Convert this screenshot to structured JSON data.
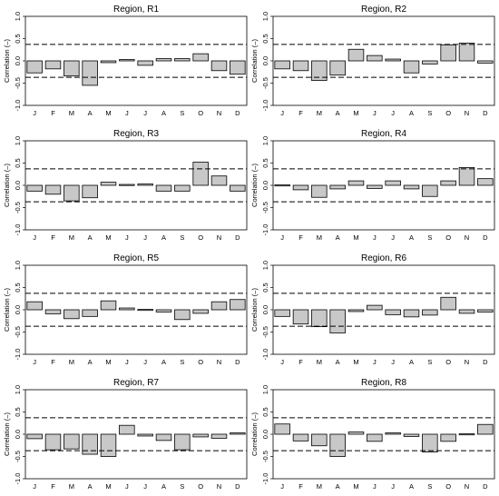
{
  "chart_data": [
    {
      "type": "bar",
      "title": "Region, R1",
      "ylabel": "Correlation (–)",
      "categories": [
        "J",
        "F",
        "M",
        "A",
        "M",
        "J",
        "J",
        "A",
        "S",
        "O",
        "N",
        "D"
      ],
      "values": [
        -0.27,
        -0.18,
        -0.34,
        -0.55,
        -0.04,
        0.03,
        -0.1,
        0.05,
        0.05,
        0.16,
        -0.22,
        -0.3
      ],
      "ylim": [
        -1,
        1
      ],
      "yticks": [
        "1.0",
        "0.5",
        "0.0",
        "-0.5",
        "-1.0"
      ],
      "reference_lines": [
        0.37,
        -0.37
      ]
    },
    {
      "type": "bar",
      "title": "Region, R2",
      "ylabel": "Correlation (–)",
      "categories": [
        "J",
        "F",
        "M",
        "A",
        "M",
        "J",
        "J",
        "A",
        "S",
        "O",
        "N",
        "D"
      ],
      "values": [
        -0.18,
        -0.22,
        -0.44,
        -0.32,
        0.26,
        0.12,
        0.04,
        -0.27,
        -0.07,
        0.36,
        0.4,
        -0.05
      ],
      "ylim": [
        -1,
        1
      ],
      "yticks": [
        "1.0",
        "0.5",
        "0.0",
        "-0.5",
        "-1.0"
      ],
      "reference_lines": [
        0.37,
        -0.37
      ]
    },
    {
      "type": "bar",
      "title": "Region, R3",
      "ylabel": "Correlation (–)",
      "categories": [
        "J",
        "F",
        "M",
        "A",
        "M",
        "J",
        "J",
        "A",
        "S",
        "O",
        "N",
        "D"
      ],
      "values": [
        -0.13,
        -0.2,
        -0.35,
        -0.28,
        0.07,
        0.02,
        0.03,
        -0.13,
        -0.13,
        0.52,
        0.21,
        -0.13
      ],
      "ylim": [
        -1,
        1
      ],
      "yticks": [
        "1.0",
        "0.5",
        "0.0",
        "-0.5",
        "-1.0"
      ],
      "reference_lines": [
        0.37,
        -0.37
      ]
    },
    {
      "type": "bar",
      "title": "Region, R4",
      "ylabel": "Correlation (–)",
      "categories": [
        "J",
        "F",
        "M",
        "A",
        "M",
        "J",
        "J",
        "A",
        "S",
        "O",
        "N",
        "D"
      ],
      "values": [
        0.01,
        -0.1,
        -0.27,
        -0.08,
        0.1,
        -0.07,
        0.1,
        -0.08,
        -0.25,
        0.1,
        0.4,
        0.15
      ],
      "ylim": [
        -1,
        1
      ],
      "yticks": [
        "1.0",
        "0.5",
        "0.0",
        "-0.5",
        "-1.0"
      ],
      "reference_lines": [
        0.37,
        -0.37
      ]
    },
    {
      "type": "bar",
      "title": "Region, R5",
      "ylabel": "Correlation (–)",
      "categories": [
        "J",
        "F",
        "M",
        "A",
        "M",
        "J",
        "J",
        "A",
        "S",
        "O",
        "N",
        "D"
      ],
      "values": [
        0.18,
        -0.09,
        -0.2,
        -0.15,
        0.2,
        0.04,
        0.01,
        -0.05,
        -0.22,
        -0.08,
        0.18,
        0.23
      ],
      "ylim": [
        -1,
        1
      ],
      "yticks": [
        "1.0",
        "0.5",
        "0.0",
        "-0.5",
        "-1.0"
      ],
      "reference_lines": [
        0.37,
        -0.37
      ]
    },
    {
      "type": "bar",
      "title": "Region, R6",
      "ylabel": "Correlation (–)",
      "categories": [
        "J",
        "F",
        "M",
        "A",
        "M",
        "J",
        "J",
        "A",
        "S",
        "O",
        "N",
        "D"
      ],
      "values": [
        -0.15,
        -0.32,
        -0.38,
        -0.52,
        -0.04,
        0.1,
        -0.11,
        -0.16,
        -0.12,
        0.28,
        -0.08,
        -0.05
      ],
      "ylim": [
        -1,
        1
      ],
      "yticks": [
        "1.0",
        "0.5",
        "0.0",
        "-0.5",
        "-1.0"
      ],
      "reference_lines": [
        0.37,
        -0.37
      ]
    },
    {
      "type": "bar",
      "title": "Region, R7",
      "ylabel": "Correlation (–)",
      "categories": [
        "J",
        "F",
        "M",
        "A",
        "M",
        "J",
        "J",
        "A",
        "S",
        "O",
        "N",
        "D"
      ],
      "values": [
        -0.1,
        -0.35,
        -0.33,
        -0.45,
        -0.5,
        0.2,
        -0.04,
        -0.14,
        -0.35,
        -0.06,
        -0.09,
        0.03
      ],
      "ylim": [
        -1,
        1
      ],
      "yticks": [
        "1.0",
        "0.5",
        "0.0",
        "-0.5",
        "-1.0"
      ],
      "reference_lines": [
        0.37,
        -0.37
      ]
    },
    {
      "type": "bar",
      "title": "Region, R8",
      "ylabel": "Correlation (–)",
      "categories": [
        "J",
        "F",
        "M",
        "A",
        "M",
        "J",
        "J",
        "A",
        "S",
        "O",
        "N",
        "D"
      ],
      "values": [
        0.23,
        -0.15,
        -0.26,
        -0.5,
        0.05,
        -0.16,
        0.03,
        -0.05,
        -0.4,
        -0.16,
        0.01,
        0.22
      ],
      "ylim": [
        -1,
        1
      ],
      "yticks": [
        "1.0",
        "0.5",
        "0.0",
        "-0.5",
        "-1.0"
      ],
      "reference_lines": [
        0.37,
        -0.37
      ]
    }
  ]
}
